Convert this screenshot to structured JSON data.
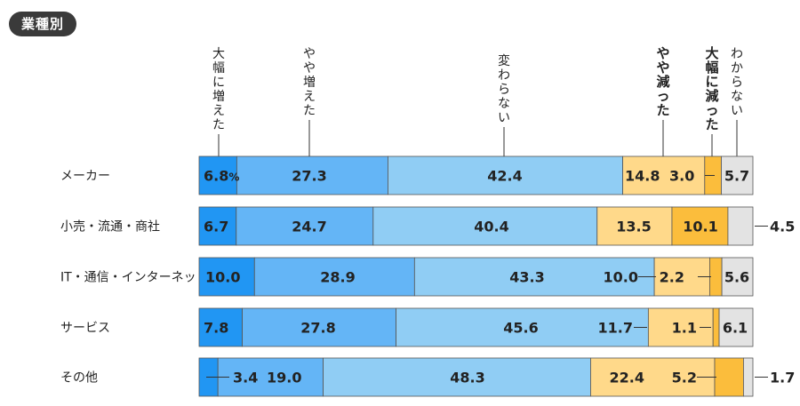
{
  "badge": "業種別",
  "chart_data": {
    "type": "bar",
    "stacked": "horizontal-100%",
    "legend_placement": "top (vertical labels above columns)",
    "series": [
      {
        "name": "大幅に増えた",
        "color": "#2196f3"
      },
      {
        "name": "やや増えた",
        "color": "#64b5f6"
      },
      {
        "name": "変わらない",
        "color": "#90cdf4"
      },
      {
        "name": "やや減った",
        "color": "#ffd98a"
      },
      {
        "name": "大幅に減った",
        "color": "#fbbd3c"
      },
      {
        "name": "わからない",
        "color": "#e3e3e3"
      }
    ],
    "categories": [
      "メーカー",
      "小売・流通・商社",
      "IT・通信・インターネット",
      "サービス",
      "その他"
    ],
    "values": [
      [
        6.8,
        27.3,
        42.4,
        14.8,
        3.0,
        5.7
      ],
      [
        6.7,
        24.7,
        40.4,
        13.5,
        10.1,
        4.5
      ],
      [
        10.0,
        28.9,
        43.3,
        10.0,
        2.2,
        5.6
      ],
      [
        7.8,
        27.8,
        45.6,
        11.7,
        1.1,
        6.1
      ],
      [
        3.4,
        19.0,
        48.3,
        22.4,
        5.2,
        1.7
      ]
    ],
    "value_labels": [
      [
        "6.8",
        "27.3",
        "42.4",
        "14.8",
        "3.0",
        "5.7"
      ],
      [
        "6.7",
        "24.7",
        "40.4",
        "13.5",
        "10.1",
        "4.5"
      ],
      [
        "10.0",
        "28.9",
        "43.3",
        "10.0",
        "2.2",
        "5.6"
      ],
      [
        "7.8",
        "27.8",
        "45.6",
        "11.7",
        "1.1",
        "6.1"
      ],
      [
        "3.4",
        "19.0",
        "48.3",
        "22.4",
        "5.2",
        "1.7"
      ]
    ],
    "first_value_unit": "%"
  }
}
